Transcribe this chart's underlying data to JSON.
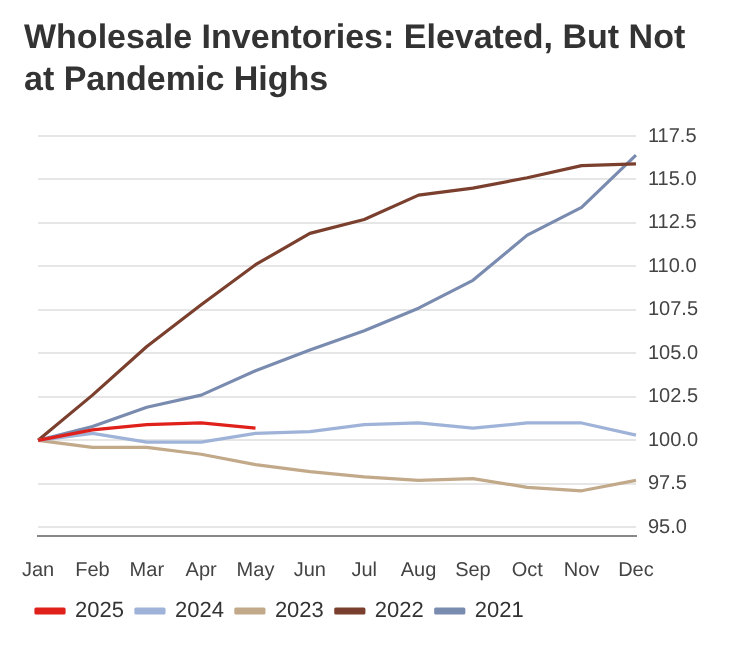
{
  "chart_data": {
    "type": "line",
    "title": "Wholesale Inventories: Elevated, But Not at Pandemic Highs",
    "categories": [
      "Jan",
      "Feb",
      "Mar",
      "Apr",
      "May",
      "Jun",
      "Jul",
      "Aug",
      "Sep",
      "Oct",
      "Nov",
      "Dec"
    ],
    "series": [
      {
        "name": "2025",
        "color": "#e0201b",
        "values": [
          100,
          100.6,
          100.9,
          101.0,
          100.7,
          null,
          null,
          null,
          null,
          null,
          null,
          null
        ]
      },
      {
        "name": "2024",
        "color": "#9fb3d9",
        "values": [
          100,
          100.4,
          99.9,
          99.9,
          100.4,
          100.5,
          100.9,
          101.0,
          100.7,
          101.0,
          101.0,
          100.3
        ]
      },
      {
        "name": "2023",
        "color": "#c2a98a",
        "values": [
          100,
          99.6,
          99.6,
          99.2,
          98.6,
          98.2,
          97.9,
          97.7,
          97.8,
          97.3,
          97.1,
          97.7
        ]
      },
      {
        "name": "2022",
        "color": "#7b3f2e",
        "values": [
          100,
          102.6,
          105.4,
          107.8,
          110.1,
          111.9,
          112.7,
          114.1,
          114.5,
          115.1,
          115.8,
          115.9
        ]
      },
      {
        "name": "2021",
        "color": "#7a8bb0",
        "values": [
          100,
          100.8,
          101.9,
          102.6,
          104.0,
          105.2,
          106.3,
          107.6,
          109.2,
          111.8,
          113.4,
          116.4
        ]
      }
    ],
    "ylim": [
      94.5,
      117.5
    ],
    "yticks": [
      {
        "value": 95,
        "label": "95.0"
      },
      {
        "value": 97.5,
        "label": "97.5"
      },
      {
        "value": 100,
        "label": "100.0"
      },
      {
        "value": 102.5,
        "label": "102.5"
      },
      {
        "value": 105,
        "label": "105.0"
      },
      {
        "value": 107.5,
        "label": "107.5"
      },
      {
        "value": 110,
        "label": "110.0"
      },
      {
        "value": 112.5,
        "label": "112.5"
      },
      {
        "value": 115,
        "label": "115.0"
      },
      {
        "value": 117.5,
        "label": "117.5"
      }
    ],
    "grid": "y",
    "legend": "bottom left",
    "marker": "none",
    "line_style": "solid"
  }
}
